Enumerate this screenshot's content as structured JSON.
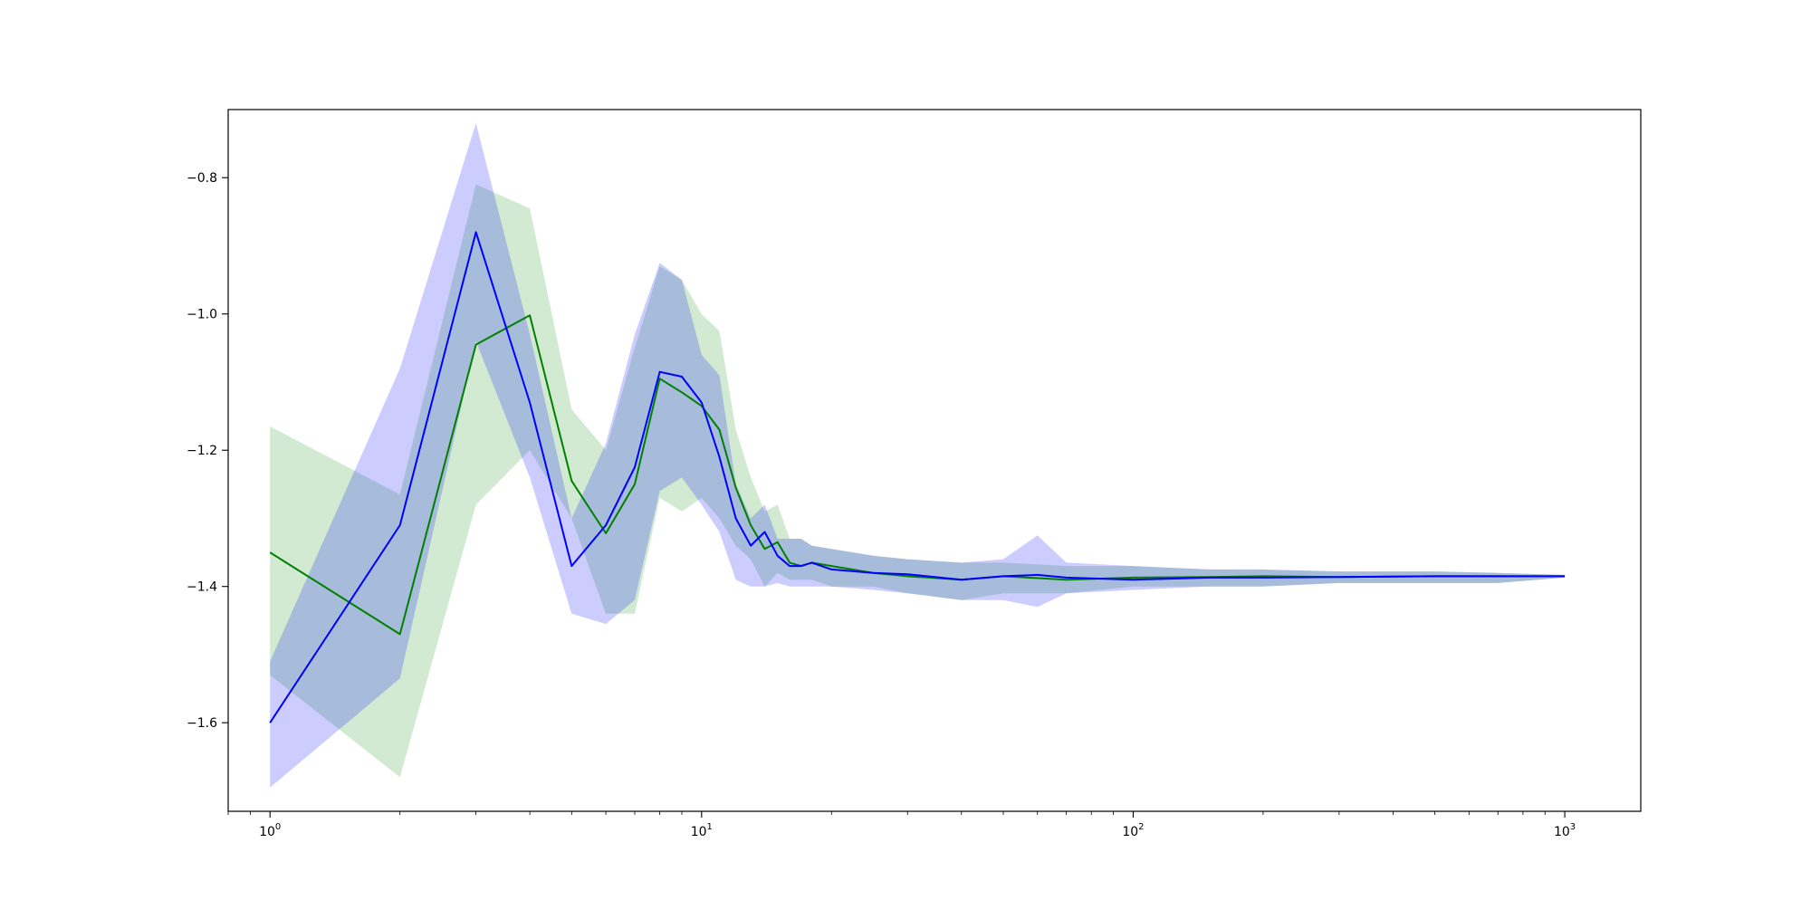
{
  "chart_data": {
    "type": "line",
    "title": "",
    "xlabel": "",
    "ylabel": "",
    "xscale": "log",
    "xlim": [
      0.8,
      1500
    ],
    "ylim": [
      -1.73,
      -0.7
    ],
    "grid": false,
    "legend": "none",
    "x_ticks": [
      {
        "value": 1,
        "base": "10",
        "exp": "0"
      },
      {
        "value": 10,
        "base": "10",
        "exp": "1"
      },
      {
        "value": 100,
        "base": "10",
        "exp": "2"
      },
      {
        "value": 1000,
        "base": "10",
        "exp": "3"
      }
    ],
    "y_ticks": [
      {
        "value": -1.6,
        "label": "−1.6"
      },
      {
        "value": -1.4,
        "label": "−1.4"
      },
      {
        "value": -1.2,
        "label": "−1.2"
      },
      {
        "value": -1.0,
        "label": "−1.0"
      },
      {
        "value": -0.8,
        "label": "−0.8"
      }
    ],
    "series": [
      {
        "color": "#008000",
        "band_color": "#2ca02c",
        "band_opacity": 0.22,
        "x": [
          1,
          2,
          3,
          4,
          5,
          6,
          7,
          8,
          9,
          10,
          11,
          12,
          13,
          14,
          15,
          16,
          17,
          18,
          20,
          25,
          30,
          40,
          50,
          70,
          100,
          150,
          200,
          300,
          500,
          700,
          1000
        ],
        "y": [
          -1.35,
          -1.47,
          -1.045,
          -1.002,
          -1.245,
          -1.322,
          -1.25,
          -1.095,
          -1.115,
          -1.135,
          -1.17,
          -1.255,
          -1.31,
          -1.345,
          -1.335,
          -1.365,
          -1.37,
          -1.365,
          -1.37,
          -1.38,
          -1.385,
          -1.39,
          -1.385,
          -1.39,
          -1.387,
          -1.386,
          -1.385,
          -1.386,
          -1.385,
          -1.385,
          -1.385
        ],
        "lower": [
          -1.53,
          -1.68,
          -1.28,
          -1.2,
          -1.3,
          -1.44,
          -1.44,
          -1.27,
          -1.29,
          -1.27,
          -1.3,
          -1.34,
          -1.36,
          -1.4,
          -1.38,
          -1.39,
          -1.39,
          -1.39,
          -1.4,
          -1.4,
          -1.41,
          -1.42,
          -1.41,
          -1.41,
          -1.4,
          -1.4,
          -1.4,
          -1.395,
          -1.395,
          -1.395,
          -1.387
        ],
        "upper": [
          -1.165,
          -1.265,
          -0.81,
          -0.845,
          -1.14,
          -1.2,
          -1.05,
          -0.93,
          -0.95,
          -1.0,
          -1.025,
          -1.17,
          -1.24,
          -1.29,
          -1.28,
          -1.33,
          -1.33,
          -1.34,
          -1.345,
          -1.355,
          -1.36,
          -1.365,
          -1.365,
          -1.37,
          -1.37,
          -1.375,
          -1.375,
          -1.378,
          -1.378,
          -1.38,
          -1.383
        ]
      },
      {
        "color": "#0000ff",
        "band_color": "#0000ff",
        "band_opacity": 0.2,
        "x": [
          1,
          2,
          3,
          4,
          5,
          6,
          7,
          8,
          9,
          10,
          11,
          12,
          13,
          14,
          15,
          16,
          17,
          18,
          20,
          25,
          30,
          40,
          50,
          60,
          70,
          100,
          150,
          200,
          300,
          500,
          700,
          1000
        ],
        "y": [
          -1.6,
          -1.31,
          -0.88,
          -1.13,
          -1.37,
          -1.31,
          -1.225,
          -1.085,
          -1.092,
          -1.13,
          -1.21,
          -1.3,
          -1.34,
          -1.32,
          -1.355,
          -1.37,
          -1.37,
          -1.365,
          -1.375,
          -1.38,
          -1.382,
          -1.39,
          -1.385,
          -1.383,
          -1.387,
          -1.39,
          -1.387,
          -1.387,
          -1.386,
          -1.385,
          -1.385,
          -1.385
        ],
        "lower": [
          -1.695,
          -1.535,
          -1.04,
          -1.24,
          -1.44,
          -1.455,
          -1.42,
          -1.26,
          -1.24,
          -1.28,
          -1.32,
          -1.39,
          -1.4,
          -1.4,
          -1.395,
          -1.4,
          -1.4,
          -1.4,
          -1.4,
          -1.405,
          -1.41,
          -1.42,
          -1.42,
          -1.43,
          -1.41,
          -1.405,
          -1.4,
          -1.4,
          -1.395,
          -1.395,
          -1.395,
          -1.387
        ],
        "upper": [
          -1.51,
          -1.08,
          -0.72,
          -1.03,
          -1.3,
          -1.19,
          -1.03,
          -0.925,
          -0.95,
          -1.06,
          -1.09,
          -1.25,
          -1.3,
          -1.28,
          -1.33,
          -1.33,
          -1.33,
          -1.34,
          -1.345,
          -1.355,
          -1.36,
          -1.365,
          -1.36,
          -1.325,
          -1.365,
          -1.37,
          -1.375,
          -1.375,
          -1.378,
          -1.378,
          -1.38,
          -1.383
        ]
      }
    ]
  }
}
